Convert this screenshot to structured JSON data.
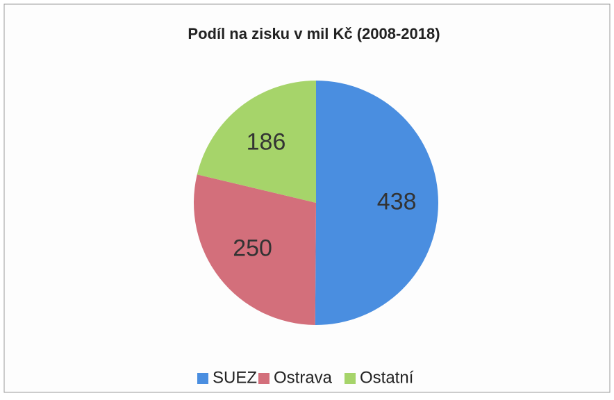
{
  "chart_data": {
    "type": "pie",
    "title": "Podíl na zisku v mil Kč (2008-2018)",
    "categories": [
      "SUEZ",
      "Ostrava",
      "Ostatní"
    ],
    "values": [
      438,
      250,
      186
    ],
    "colors": [
      "#4a8ee0",
      "#d36f7b",
      "#a6d46a"
    ],
    "legend": "bottom"
  }
}
